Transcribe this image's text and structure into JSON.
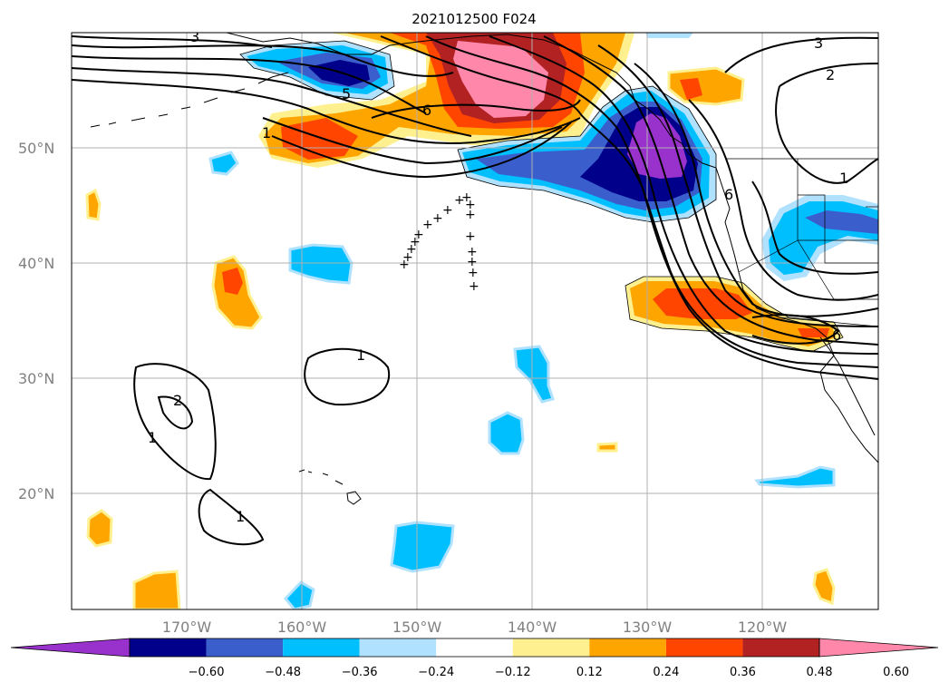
{
  "title": "2021012500 F024",
  "map": {
    "lon_range": [
      -180,
      -110
    ],
    "lat_range": [
      10,
      60
    ],
    "lon_ticks": [
      "170°W",
      "160°W",
      "150°W",
      "140°W",
      "130°W",
      "120°W"
    ],
    "lat_ticks": [
      "50°N",
      "40°N",
      "30°N",
      "20°N"
    ],
    "grid": true
  },
  "colorbar": {
    "colors": [
      "#9932cc",
      "#00008b",
      "#3a5fcd",
      "#00bfff",
      "#b0e2ff",
      "#ffffff",
      "#fff08f",
      "#ffa500",
      "#ff4500",
      "#b22222",
      "#ff88aa"
    ],
    "labels": [
      "−0.60",
      "−0.48",
      "−0.36",
      "−0.24",
      "−0.12",
      "0.12",
      "0.24",
      "0.36",
      "0.48",
      "0.60"
    ],
    "extend": "both"
  },
  "contour_labels": [
    "3",
    "5",
    "6",
    "1",
    "1",
    "2",
    "1",
    "1",
    "3",
    "2",
    "1",
    "6",
    "6"
  ]
}
